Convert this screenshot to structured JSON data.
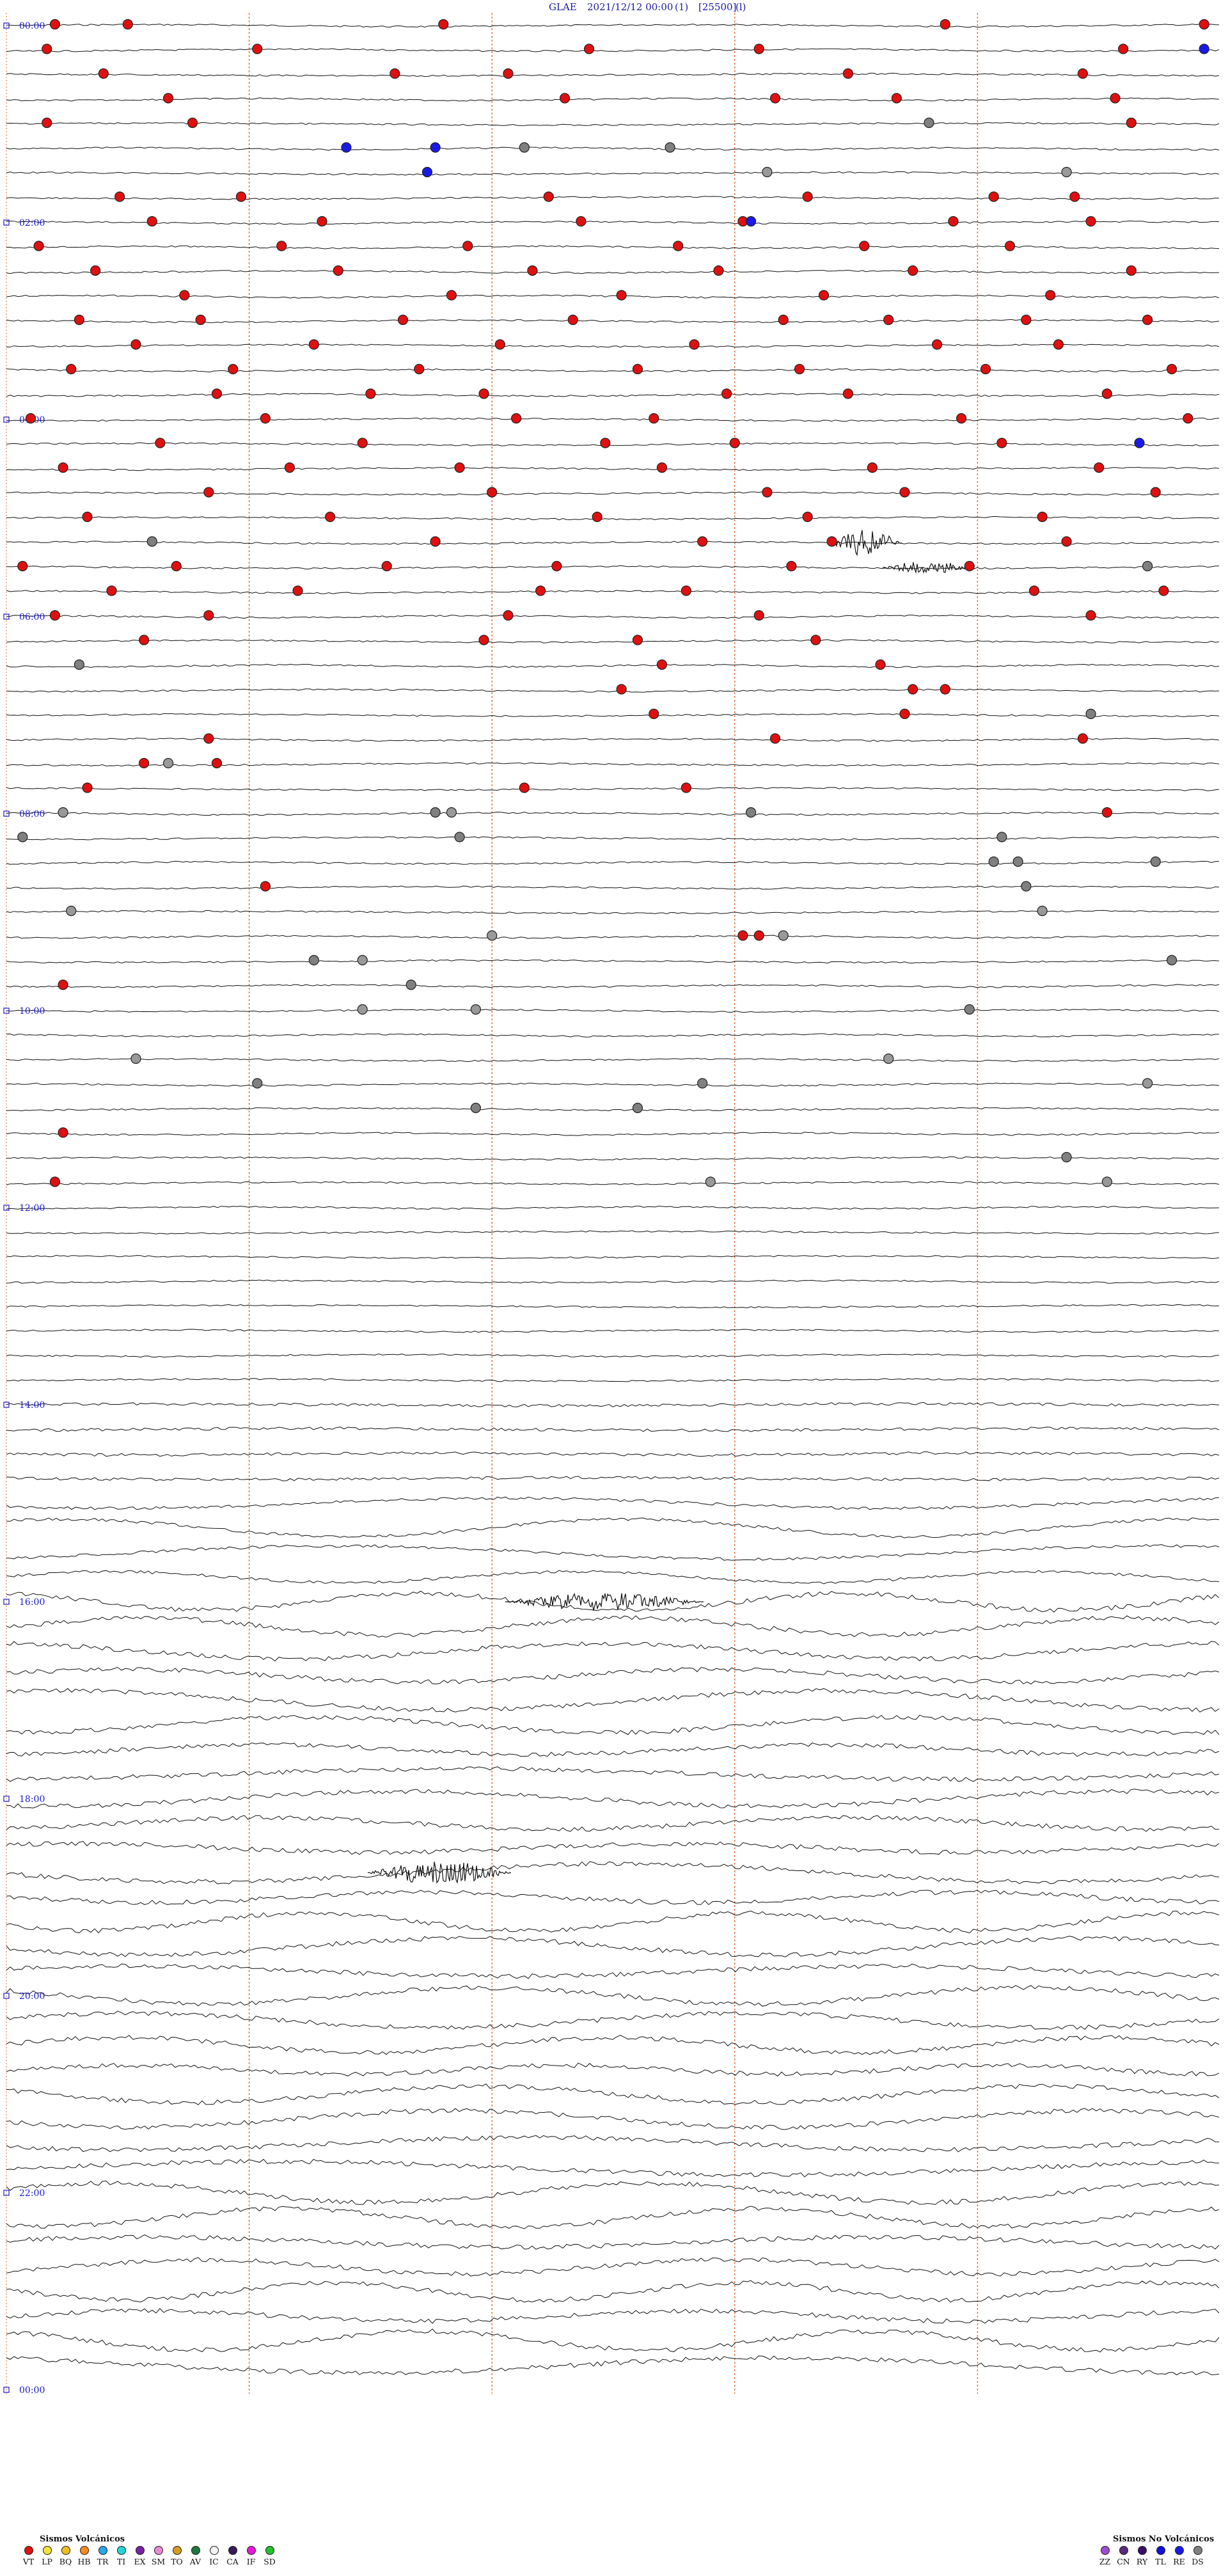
{
  "header": {
    "station": "GLAE",
    "datetime": "2021/12/12 00:00",
    "channel": "(1)",
    "gain": "[25500]",
    "flag": "(l)"
  },
  "chart_data": {
    "type": "scatter",
    "title": "GLAE 2021/12/12 00:00",
    "time_labels": [
      "00:00",
      "02:00",
      "04:00",
      "06:00",
      "08:00",
      "10:00",
      "12:00",
      "14:00",
      "16:00",
      "18:00",
      "20:00",
      "22:00",
      "00:00"
    ],
    "traces_per_hour": 4,
    "minutes_per_trace": 15,
    "trace_count": 96,
    "minute_grid": [
      0,
      3,
      6,
      9,
      12
    ],
    "grid": true,
    "events": [
      {
        "code": "VT",
        "hour": 0.0,
        "minute": 0.6
      },
      {
        "code": "VT",
        "hour": 0.0,
        "minute": 1.5
      },
      {
        "code": "VT",
        "hour": 0.0,
        "minute": 5.4
      },
      {
        "code": "VT",
        "hour": 0.0,
        "minute": 11.6
      },
      {
        "code": "VT",
        "hour": 0.0,
        "minute": 14.8
      },
      {
        "code": "VT",
        "hour": 0.25,
        "minute": 0.5
      },
      {
        "code": "VT",
        "hour": 0.25,
        "minute": 3.1
      },
      {
        "code": "VT",
        "hour": 0.25,
        "minute": 7.2
      },
      {
        "code": "VT",
        "hour": 0.25,
        "minute": 9.3
      },
      {
        "code": "VT",
        "hour": 0.25,
        "minute": 13.8
      },
      {
        "code": "RE",
        "hour": 0.25,
        "minute": 14.8
      },
      {
        "code": "VT",
        "hour": 0.5,
        "minute": 1.2
      },
      {
        "code": "VT",
        "hour": 0.5,
        "minute": 4.8
      },
      {
        "code": "VT",
        "hour": 0.5,
        "minute": 6.2
      },
      {
        "code": "VT",
        "hour": 0.5,
        "minute": 10.4
      },
      {
        "code": "VT",
        "hour": 0.5,
        "minute": 13.3
      },
      {
        "code": "VT",
        "hour": 0.75,
        "minute": 2.0
      },
      {
        "code": "VT",
        "hour": 0.75,
        "minute": 6.9
      },
      {
        "code": "VT",
        "hour": 0.75,
        "minute": 9.5
      },
      {
        "code": "VT",
        "hour": 0.75,
        "minute": 11.0
      },
      {
        "code": "VT",
        "hour": 0.75,
        "minute": 13.7
      },
      {
        "code": "VT",
        "hour": 1.0,
        "minute": 0.5
      },
      {
        "code": "VT",
        "hour": 1.0,
        "minute": 2.3
      },
      {
        "code": "DS",
        "hour": 1.0,
        "minute": 11.4
      },
      {
        "code": "VT",
        "hour": 1.0,
        "minute": 13.9
      },
      {
        "code": "RE",
        "hour": 1.25,
        "minute": 4.2
      },
      {
        "code": "RE",
        "hour": 1.25,
        "minute": 5.3
      },
      {
        "code": "DS",
        "hour": 1.25,
        "minute": 6.4
      },
      {
        "code": "DS",
        "hour": 1.25,
        "minute": 8.2
      },
      {
        "code": "BE",
        "hour": 1.5,
        "minute": 9.4
      },
      {
        "code": "RE",
        "hour": 1.5,
        "minute": 5.2
      },
      {
        "code": "BE",
        "hour": 1.5,
        "minute": 13.1
      },
      {
        "code": "VT",
        "hour": 1.75,
        "minute": 1.4
      },
      {
        "code": "VT",
        "hour": 1.75,
        "minute": 2.9
      },
      {
        "code": "VT",
        "hour": 1.75,
        "minute": 6.7
      },
      {
        "code": "VT",
        "hour": 1.75,
        "minute": 9.9
      },
      {
        "code": "VT",
        "hour": 1.75,
        "minute": 12.2
      },
      {
        "code": "VT",
        "hour": 1.75,
        "minute": 13.2
      },
      {
        "code": "VT",
        "hour": 2.0,
        "minute": 1.8
      },
      {
        "code": "VT",
        "hour": 2.0,
        "minute": 3.9
      },
      {
        "code": "VT",
        "hour": 2.0,
        "minute": 7.1
      },
      {
        "code": "VT",
        "hour": 2.0,
        "minute": 9.1
      },
      {
        "code": "RE",
        "hour": 2.0,
        "minute": 9.2
      },
      {
        "code": "VT",
        "hour": 2.0,
        "minute": 11.7
      },
      {
        "code": "VT",
        "hour": 2.0,
        "minute": 13.4
      },
      {
        "code": "VT",
        "hour": 2.25,
        "minute": 0.4
      },
      {
        "code": "VT",
        "hour": 2.25,
        "minute": 3.4
      },
      {
        "code": "VT",
        "hour": 2.25,
        "minute": 5.7
      },
      {
        "code": "VT",
        "hour": 2.25,
        "minute": 8.3
      },
      {
        "code": "VT",
        "hour": 2.25,
        "minute": 10.6
      },
      {
        "code": "VT",
        "hour": 2.25,
        "minute": 12.4
      },
      {
        "code": "VT",
        "hour": 2.5,
        "minute": 1.1
      },
      {
        "code": "VT",
        "hour": 2.5,
        "minute": 4.1
      },
      {
        "code": "VT",
        "hour": 2.5,
        "minute": 6.5
      },
      {
        "code": "VT",
        "hour": 2.5,
        "minute": 8.8
      },
      {
        "code": "VT",
        "hour": 2.5,
        "minute": 11.2
      },
      {
        "code": "VT",
        "hour": 2.5,
        "minute": 13.9
      },
      {
        "code": "VT",
        "hour": 2.75,
        "minute": 2.2
      },
      {
        "code": "VT",
        "hour": 2.75,
        "minute": 5.5
      },
      {
        "code": "VT",
        "hour": 2.75,
        "minute": 7.6
      },
      {
        "code": "VT",
        "hour": 2.75,
        "minute": 10.1
      },
      {
        "code": "VT",
        "hour": 2.75,
        "minute": 12.9
      },
      {
        "code": "VT",
        "hour": 3.0,
        "minute": 0.9
      },
      {
        "code": "VT",
        "hour": 3.0,
        "minute": 2.4
      },
      {
        "code": "VT",
        "hour": 3.0,
        "minute": 4.9
      },
      {
        "code": "VT",
        "hour": 3.0,
        "minute": 7.0
      },
      {
        "code": "VT",
        "hour": 3.0,
        "minute": 9.6
      },
      {
        "code": "VT",
        "hour": 3.0,
        "minute": 10.9
      },
      {
        "code": "VT",
        "hour": 3.0,
        "minute": 12.6
      },
      {
        "code": "VT",
        "hour": 3.0,
        "minute": 14.1
      },
      {
        "code": "VT",
        "hour": 3.25,
        "minute": 1.6
      },
      {
        "code": "VT",
        "hour": 3.25,
        "minute": 3.8
      },
      {
        "code": "VT",
        "hour": 3.25,
        "minute": 6.1
      },
      {
        "code": "VT",
        "hour": 3.25,
        "minute": 8.5
      },
      {
        "code": "VT",
        "hour": 3.25,
        "minute": 11.5
      },
      {
        "code": "VT",
        "hour": 3.25,
        "minute": 13.0
      },
      {
        "code": "VT",
        "hour": 3.5,
        "minute": 0.8
      },
      {
        "code": "VT",
        "hour": 3.5,
        "minute": 2.8
      },
      {
        "code": "VT",
        "hour": 3.5,
        "minute": 5.1
      },
      {
        "code": "VT",
        "hour": 3.5,
        "minute": 7.8
      },
      {
        "code": "VT",
        "hour": 3.5,
        "minute": 9.8
      },
      {
        "code": "VT",
        "hour": 3.5,
        "minute": 12.1
      },
      {
        "code": "VT",
        "hour": 3.5,
        "minute": 14.4
      },
      {
        "code": "VT",
        "hour": 3.75,
        "minute": 2.6
      },
      {
        "code": "VT",
        "hour": 3.75,
        "minute": 4.5
      },
      {
        "code": "VT",
        "hour": 3.75,
        "minute": 5.9
      },
      {
        "code": "VT",
        "hour": 3.75,
        "minute": 8.9
      },
      {
        "code": "VT",
        "hour": 3.75,
        "minute": 10.4
      },
      {
        "code": "VT",
        "hour": 3.75,
        "minute": 13.6
      },
      {
        "code": "VT",
        "hour": 4.0,
        "minute": 0.3
      },
      {
        "code": "VT",
        "hour": 4.0,
        "minute": 3.2
      },
      {
        "code": "VT",
        "hour": 4.0,
        "minute": 6.3
      },
      {
        "code": "VT",
        "hour": 4.0,
        "minute": 8.0
      },
      {
        "code": "VT",
        "hour": 4.0,
        "minute": 11.8
      },
      {
        "code": "VT",
        "hour": 4.0,
        "minute": 14.6
      },
      {
        "code": "VT",
        "hour": 4.25,
        "minute": 1.9
      },
      {
        "code": "VT",
        "hour": 4.25,
        "minute": 4.4
      },
      {
        "code": "VT",
        "hour": 4.25,
        "minute": 7.4
      },
      {
        "code": "VT",
        "hour": 4.25,
        "minute": 9.0
      },
      {
        "code": "VT",
        "hour": 4.25,
        "minute": 12.3
      },
      {
        "code": "RE",
        "hour": 4.25,
        "minute": 14.0
      },
      {
        "code": "VT",
        "hour": 4.5,
        "minute": 0.7
      },
      {
        "code": "VT",
        "hour": 4.5,
        "minute": 3.5
      },
      {
        "code": "VT",
        "hour": 4.5,
        "minute": 5.6
      },
      {
        "code": "VT",
        "hour": 4.5,
        "minute": 8.1
      },
      {
        "code": "VT",
        "hour": 4.5,
        "minute": 10.7
      },
      {
        "code": "VT",
        "hour": 4.5,
        "minute": 13.5
      },
      {
        "code": "VT",
        "hour": 4.75,
        "minute": 2.5
      },
      {
        "code": "VT",
        "hour": 4.75,
        "minute": 6.0
      },
      {
        "code": "VT",
        "hour": 4.75,
        "minute": 9.4
      },
      {
        "code": "VT",
        "hour": 4.75,
        "minute": 11.1
      },
      {
        "code": "VT",
        "hour": 4.75,
        "minute": 14.2
      },
      {
        "code": "VT",
        "hour": 5.0,
        "minute": 1.0
      },
      {
        "code": "VT",
        "hour": 5.0,
        "minute": 4.0
      },
      {
        "code": "VT",
        "hour": 5.0,
        "minute": 7.3
      },
      {
        "code": "VT",
        "hour": 5.0,
        "minute": 9.9
      },
      {
        "code": "VT",
        "hour": 5.0,
        "minute": 12.8
      },
      {
        "code": "DS",
        "hour": 5.25,
        "minute": 1.8
      },
      {
        "code": "VT",
        "hour": 5.25,
        "minute": 5.3
      },
      {
        "code": "VT",
        "hour": 5.25,
        "minute": 8.6
      },
      {
        "code": "VT",
        "hour": 5.25,
        "minute": 10.2
      },
      {
        "code": "VT",
        "hour": 5.25,
        "minute": 13.1
      },
      {
        "code": "VT",
        "hour": 5.5,
        "minute": 0.2
      },
      {
        "code": "VT",
        "hour": 5.5,
        "minute": 2.1
      },
      {
        "code": "VT",
        "hour": 5.5,
        "minute": 4.7
      },
      {
        "code": "VT",
        "hour": 5.5,
        "minute": 6.8
      },
      {
        "code": "VT",
        "hour": 5.5,
        "minute": 9.7
      },
      {
        "code": "VT",
        "hour": 5.5,
        "minute": 11.9
      },
      {
        "code": "DS",
        "hour": 5.5,
        "minute": 14.1
      },
      {
        "code": "VT",
        "hour": 5.75,
        "minute": 1.3
      },
      {
        "code": "VT",
        "hour": 5.75,
        "minute": 3.6
      },
      {
        "code": "VT",
        "hour": 5.75,
        "minute": 6.6
      },
      {
        "code": "VT",
        "hour": 5.75,
        "minute": 8.4
      },
      {
        "code": "VT",
        "hour": 5.75,
        "minute": 12.7
      },
      {
        "code": "VT",
        "hour": 5.75,
        "minute": 14.3
      },
      {
        "code": "VT",
        "hour": 6.0,
        "minute": 0.6
      },
      {
        "code": "VT",
        "hour": 6.0,
        "minute": 2.5
      },
      {
        "code": "VT",
        "hour": 6.0,
        "minute": 6.2
      },
      {
        "code": "VT",
        "hour": 6.0,
        "minute": 9.3
      },
      {
        "code": "VT",
        "hour": 6.0,
        "minute": 13.4
      },
      {
        "code": "VT",
        "hour": 6.25,
        "minute": 1.7
      },
      {
        "code": "VT",
        "hour": 6.25,
        "minute": 5.9
      },
      {
        "code": "VT",
        "hour": 6.25,
        "minute": 7.8
      },
      {
        "code": "VT",
        "hour": 6.25,
        "minute": 10.0
      },
      {
        "code": "DS",
        "hour": 6.5,
        "minute": 0.9
      },
      {
        "code": "VT",
        "hour": 6.5,
        "minute": 8.1
      },
      {
        "code": "VT",
        "hour": 6.5,
        "minute": 10.8
      },
      {
        "code": "VT",
        "hour": 6.75,
        "minute": 7.6
      },
      {
        "code": "VT",
        "hour": 6.75,
        "minute": 11.2
      },
      {
        "code": "VT",
        "hour": 6.75,
        "minute": 11.6
      },
      {
        "code": "VT",
        "hour": 7.0,
        "minute": 8.0
      },
      {
        "code": "VT",
        "hour": 7.0,
        "minute": 11.1
      },
      {
        "code": "DS",
        "hour": 7.0,
        "minute": 13.4
      },
      {
        "code": "VT",
        "hour": 7.25,
        "minute": 2.5
      },
      {
        "code": "VT",
        "hour": 7.25,
        "minute": 9.5
      },
      {
        "code": "VT",
        "hour": 7.25,
        "minute": 13.3
      },
      {
        "code": "BE",
        "hour": 7.5,
        "minute": 2.0
      },
      {
        "code": "VT",
        "hour": 7.5,
        "minute": 1.7
      },
      {
        "code": "VT",
        "hour": 7.5,
        "minute": 2.6
      },
      {
        "code": "VT",
        "hour": 7.75,
        "minute": 1.0
      },
      {
        "code": "VT",
        "hour": 7.75,
        "minute": 6.4
      },
      {
        "code": "VT",
        "hour": 7.75,
        "minute": 8.4
      },
      {
        "code": "BE",
        "hour": 8.0,
        "minute": 0.7
      },
      {
        "code": "DS",
        "hour": 8.0,
        "minute": 5.3
      },
      {
        "code": "BE",
        "hour": 8.0,
        "minute": 5.5
      },
      {
        "code": "DS",
        "hour": 8.0,
        "minute": 9.2
      },
      {
        "code": "VT",
        "hour": 8.0,
        "minute": 13.6
      },
      {
        "code": "DS",
        "hour": 8.25,
        "minute": 0.2
      },
      {
        "code": "DS",
        "hour": 8.25,
        "minute": 5.6
      },
      {
        "code": "DS",
        "hour": 8.25,
        "minute": 12.3
      },
      {
        "code": "DS",
        "hour": 8.5,
        "minute": 12.2
      },
      {
        "code": "DS",
        "hour": 8.5,
        "minute": 12.5
      },
      {
        "code": "DS",
        "hour": 8.5,
        "minute": 14.2
      },
      {
        "code": "DS",
        "hour": 8.75,
        "minute": 12.6
      },
      {
        "code": "VT",
        "hour": 8.75,
        "minute": 3.2
      },
      {
        "code": "BE",
        "hour": 9.0,
        "minute": 0.8
      },
      {
        "code": "BE",
        "hour": 9.0,
        "minute": 12.8
      },
      {
        "code": "VT",
        "hour": 9.25,
        "minute": 9.1
      },
      {
        "code": "VT",
        "hour": 9.25,
        "minute": 9.3
      },
      {
        "code": "BE",
        "hour": 9.25,
        "minute": 6.0
      },
      {
        "code": "BE",
        "hour": 9.25,
        "minute": 9.6
      },
      {
        "code": "DS",
        "hour": 9.5,
        "minute": 3.8
      },
      {
        "code": "BE",
        "hour": 9.5,
        "minute": 4.4
      },
      {
        "code": "DS",
        "hour": 9.5,
        "minute": 14.4
      },
      {
        "code": "VT",
        "hour": 9.75,
        "minute": 0.7
      },
      {
        "code": "DS",
        "hour": 9.75,
        "minute": 5.0
      },
      {
        "code": "BE",
        "hour": 10.0,
        "minute": 4.4
      },
      {
        "code": "BE",
        "hour": 10.0,
        "minute": 5.8
      },
      {
        "code": "DS",
        "hour": 10.0,
        "minute": 11.9
      },
      {
        "code": "BE",
        "hour": 10.5,
        "minute": 1.6
      },
      {
        "code": "BE",
        "hour": 10.5,
        "minute": 10.9
      },
      {
        "code": "DS",
        "hour": 10.75,
        "minute": 3.1
      },
      {
        "code": "DS",
        "hour": 10.75,
        "minute": 8.6
      },
      {
        "code": "BE",
        "hour": 10.75,
        "minute": 14.1
      },
      {
        "code": "DS",
        "hour": 11.0,
        "minute": 5.8
      },
      {
        "code": "DS",
        "hour": 11.0,
        "minute": 7.8
      },
      {
        "code": "VT",
        "hour": 11.25,
        "minute": 0.7
      },
      {
        "code": "DS",
        "hour": 11.5,
        "minute": 13.1
      },
      {
        "code": "VT",
        "hour": 11.75,
        "minute": 0.6
      },
      {
        "code": "BE",
        "hour": 11.75,
        "minute": 8.7
      },
      {
        "code": "BE",
        "hour": 11.75,
        "minute": 13.6
      }
    ]
  },
  "legend": {
    "volcanic_title": "Sismos Volcánicos",
    "non_volcanic_title": "Sismos No Volcánicos",
    "volcanic": [
      {
        "code": "VT",
        "color": "#e01010"
      },
      {
        "code": "LP",
        "color": "#f4e23a"
      },
      {
        "code": "BQ",
        "color": "#f0c020"
      },
      {
        "code": "HB",
        "color": "#ff8a1e"
      },
      {
        "code": "TR",
        "color": "#2aa6e8"
      },
      {
        "code": "TI",
        "color": "#22d6d6"
      },
      {
        "code": "EX",
        "color": "#7a1fa6"
      },
      {
        "code": "SM",
        "color": "#e88ad4"
      },
      {
        "code": "TO",
        "color": "#d89a20"
      },
      {
        "code": "AV",
        "color": "#1e7a3e"
      },
      {
        "code": "IC",
        "color": "#f2f2f2"
      },
      {
        "code": "CA",
        "color": "#3a1a5a"
      },
      {
        "code": "IF",
        "color": "#e81ad6"
      },
      {
        "code": "SD",
        "color": "#22c02a"
      }
    ],
    "non_volcanic": [
      {
        "code": "ZZ",
        "color": "#9b4fd0"
      },
      {
        "code": "CN",
        "color": "#5a2a7a"
      },
      {
        "code": "RY",
        "color": "#3a0f6a"
      },
      {
        "code": "TL",
        "color": "#1010e0"
      },
      {
        "code": "RE",
        "color": "#1a1ae6"
      },
      {
        "code": "DS",
        "color": "#808080"
      }
    ]
  },
  "colors": {
    "trace": "#111111",
    "grid": "#e06a2a",
    "time_label": "#1a1ad0",
    "background": "#ffffff"
  }
}
